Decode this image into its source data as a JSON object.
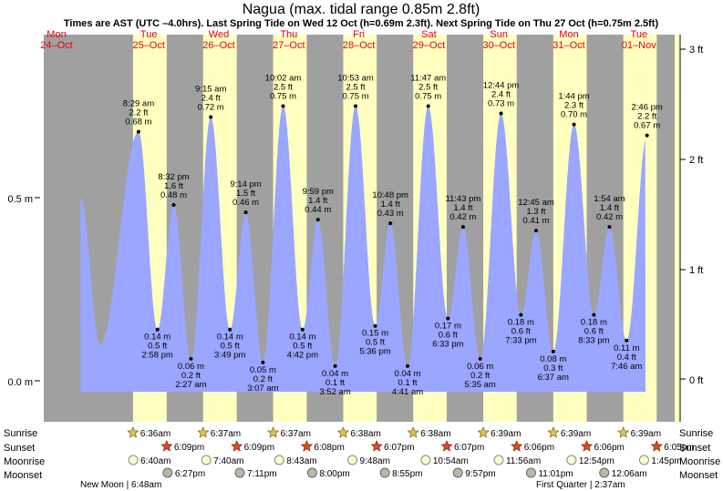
{
  "title": "Nagua (max. tidal range 0.85m 2.8ft)",
  "subtitle": "Times are AST (UTC –4.0hrs). Last Spring Tide on Wed 12 Oct (h=0.69m 2.3ft). Next Spring Tide on Thu 27 Oct (h=0.75m 2.5ft)",
  "colors": {
    "night": "#a0a0a0",
    "day": "#ffffc0",
    "tide": "#9aa6ff",
    "day_label": "#e8000b"
  },
  "chart_data": {
    "type": "area",
    "title": "Nagua (max. tidal range 0.85m 2.8ft)",
    "y_left_label_ticks": [
      "0.0 m",
      "0.5 m"
    ],
    "y_right_label_ticks": [
      "0 ft",
      "1 ft",
      "2 ft",
      "3 ft"
    ],
    "ylim_m": [
      -0.05,
      0.91
    ],
    "grid": false,
    "days": [
      {
        "dow": "Mon",
        "date": "24–Oct"
      },
      {
        "dow": "Tue",
        "date": "25–Oct"
      },
      {
        "dow": "Wed",
        "date": "26–Oct"
      },
      {
        "dow": "Thu",
        "date": "27–Oct"
      },
      {
        "dow": "Fri",
        "date": "28–Oct"
      },
      {
        "dow": "Sat",
        "date": "29–Oct"
      },
      {
        "dow": "Sun",
        "date": "30–Oct"
      },
      {
        "dow": "Mon",
        "date": "31–Oct"
      },
      {
        "dow": "Tue",
        "date": "01–Nov"
      }
    ],
    "extremes": [
      {
        "type": "high",
        "time": "8:29 am",
        "ft": "2.2 ft",
        "m": 0.68,
        "m_label": "0.68 m"
      },
      {
        "type": "low",
        "time": "2:58 pm",
        "ft": "0.5 ft",
        "m": 0.14,
        "m_label": "0.14 m"
      },
      {
        "type": "high",
        "time": "8:32 pm",
        "ft": "1.6 ft",
        "m": 0.48,
        "m_label": "0.48 m"
      },
      {
        "type": "low",
        "time": "2:27 am",
        "ft": "0.2 ft",
        "m": 0.06,
        "m_label": "0.06 m"
      },
      {
        "type": "high",
        "time": "9:15 am",
        "ft": "2.4 ft",
        "m": 0.72,
        "m_label": "0.72 m"
      },
      {
        "type": "low",
        "time": "3:49 pm",
        "ft": "0.5 ft",
        "m": 0.14,
        "m_label": "0.14 m"
      },
      {
        "type": "high",
        "time": "9:14 pm",
        "ft": "1.5 ft",
        "m": 0.46,
        "m_label": "0.46 m"
      },
      {
        "type": "low",
        "time": "3:07 am",
        "ft": "0.2 ft",
        "m": 0.05,
        "m_label": "0.05 m"
      },
      {
        "type": "high",
        "time": "10:02 am",
        "ft": "2.5 ft",
        "m": 0.75,
        "m_label": "0.75 m"
      },
      {
        "type": "low",
        "time": "4:42 pm",
        "ft": "0.5 ft",
        "m": 0.14,
        "m_label": "0.14 m"
      },
      {
        "type": "high",
        "time": "9:59 pm",
        "ft": "1.4 ft",
        "m": 0.44,
        "m_label": "0.44 m"
      },
      {
        "type": "low",
        "time": "3:52 am",
        "ft": "0.1 ft",
        "m": 0.04,
        "m_label": "0.04 m"
      },
      {
        "type": "high",
        "time": "10:53 am",
        "ft": "2.5 ft",
        "m": 0.75,
        "m_label": "0.75 m"
      },
      {
        "type": "low",
        "time": "5:36 pm",
        "ft": "0.5 ft",
        "m": 0.15,
        "m_label": "0.15 m"
      },
      {
        "type": "high",
        "time": "10:48 pm",
        "ft": "1.4 ft",
        "m": 0.43,
        "m_label": "0.43 m"
      },
      {
        "type": "low",
        "time": "4:41 am",
        "ft": "0.1 ft",
        "m": 0.04,
        "m_label": "0.04 m"
      },
      {
        "type": "high",
        "time": "11:47 am",
        "ft": "2.5 ft",
        "m": 0.75,
        "m_label": "0.75 m"
      },
      {
        "type": "low",
        "time": "6:33 pm",
        "ft": "0.6 ft",
        "m": 0.17,
        "m_label": "0.17 m"
      },
      {
        "type": "high",
        "time": "11:43 pm",
        "ft": "1.4 ft",
        "m": 0.42,
        "m_label": "0.42 m"
      },
      {
        "type": "low",
        "time": "5:35 am",
        "ft": "0.2 ft",
        "m": 0.06,
        "m_label": "0.06 m"
      },
      {
        "type": "high",
        "time": "12:44 pm",
        "ft": "2.4 ft",
        "m": 0.73,
        "m_label": "0.73 m"
      },
      {
        "type": "low",
        "time": "7:33 pm",
        "ft": "0.6 ft",
        "m": 0.18,
        "m_label": "0.18 m"
      },
      {
        "type": "high",
        "time": "12:45 am",
        "ft": "1.3 ft",
        "m": 0.41,
        "m_label": "0.41 m"
      },
      {
        "type": "low",
        "time": "6:37 am",
        "ft": "0.3 ft",
        "m": 0.08,
        "m_label": "0.08 m"
      },
      {
        "type": "high",
        "time": "1:44 pm",
        "ft": "2.3 ft",
        "m": 0.7,
        "m_label": "0.70 m"
      },
      {
        "type": "low",
        "time": "8:33 pm",
        "ft": "0.6 ft",
        "m": 0.18,
        "m_label": "0.18 m"
      },
      {
        "type": "high",
        "time": "1:54 am",
        "ft": "1.4 ft",
        "m": 0.42,
        "m_label": "0.42 m"
      },
      {
        "type": "low",
        "time": "7:46 am",
        "ft": "0.4 ft",
        "m": 0.11,
        "m_label": "0.11 m"
      },
      {
        "type": "high",
        "time": "2:46 pm",
        "ft": "2.2 ft",
        "m": 0.67,
        "m_label": "0.67 m"
      }
    ]
  },
  "rows": {
    "sunrise_label": "Sunrise",
    "sunset_label": "Sunset",
    "moonrise_label": "Moonrise",
    "moonset_label": "Moonset",
    "sunrise": [
      "6:36am",
      "6:37am",
      "6:37am",
      "6:38am",
      "6:38am",
      "6:39am",
      "6:39am",
      "6:39am"
    ],
    "sunset": [
      "6:09pm",
      "6:09pm",
      "6:08pm",
      "6:07pm",
      "6:07pm",
      "6:06pm",
      "6:06pm",
      "6:05pm"
    ],
    "moonrise": [
      "6:40am",
      "7:40am",
      "8:43am",
      "9:48am",
      "10:54am",
      "11:56am",
      "12:54pm",
      "1:45pm"
    ],
    "moonset": [
      "6:27pm",
      "7:11pm",
      "8:00pm",
      "8:55pm",
      "9:57pm",
      "11:01pm",
      "12:06am"
    ]
  },
  "moon_phases": {
    "new_moon": "New Moon | 6:48am",
    "first_quarter": "First Quarter | 2:37am"
  }
}
